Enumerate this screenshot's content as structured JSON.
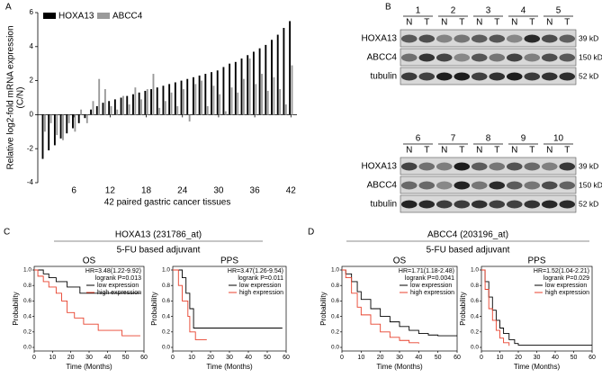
{
  "panel_labels": [
    "A",
    "B",
    "C",
    "D"
  ],
  "chart_data": [
    {
      "type": "bar",
      "legend": "upper left",
      "x_label": "42 paired gastric cancer tissues",
      "y_label": [
        "Relative log2-fold mRNA expression",
        "(C/N)"
      ],
      "x": [
        1,
        2,
        3,
        4,
        5,
        6,
        7,
        8,
        9,
        10,
        11,
        12,
        13,
        14,
        15,
        16,
        17,
        18,
        19,
        20,
        21,
        22,
        23,
        24,
        25,
        26,
        27,
        28,
        29,
        30,
        31,
        32,
        33,
        34,
        35,
        36,
        37,
        38,
        39,
        40,
        41,
        42
      ],
      "xlim": [
        0,
        43
      ],
      "xticks": [
        6,
        12,
        18,
        24,
        30,
        36,
        42
      ],
      "ylim": [
        -4,
        6
      ],
      "yticks": [
        -4,
        -2,
        0,
        2,
        4,
        6
      ],
      "series": [
        {
          "name": "HOXA13",
          "color": "#000000",
          "values": [
            -2.6,
            -2.1,
            -1.8,
            -1.4,
            -1.1,
            -0.8,
            -0.5,
            -0.2,
            0.3,
            0.5,
            0.7,
            0.8,
            0.9,
            1.0,
            1.1,
            1.2,
            1.3,
            1.4,
            1.5,
            1.6,
            1.7,
            1.8,
            1.9,
            2.0,
            2.1,
            2.2,
            2.3,
            2.4,
            2.5,
            2.6,
            2.8,
            3.0,
            3.1,
            3.3,
            3.5,
            3.7,
            3.9,
            4.1,
            4.4,
            4.7,
            5.1,
            5.5
          ]
        },
        {
          "name": "ABCC4",
          "color": "#9a9a9a",
          "values": [
            -1.0,
            -0.5,
            -1.2,
            -1.5,
            -0.5,
            -1.0,
            0.3,
            -0.5,
            0.8,
            2.1,
            1.5,
            0.5,
            0.3,
            1.1,
            0.6,
            1.6,
            0.9,
            1.5,
            2.4,
            0.4,
            0.8,
            1.3,
            0.5,
            1.5,
            -0.4,
            1.8,
            2.0,
            0.5,
            1.7,
            1.2,
            0.2,
            1.6,
            1.3,
            2.1,
            3.3,
            1.8,
            2.4,
            1.4,
            2.2,
            1.5,
            0.6,
            2.9
          ]
        }
      ]
    },
    {
      "type": "step",
      "title": "OS",
      "annotations": [
        "HR=3.48(1.22-9.92)",
        "logrank P=0.013"
      ],
      "x_label": "Time (Months)",
      "y_label": "Probability",
      "xlim": [
        0,
        60
      ],
      "xticks": [
        0,
        10,
        20,
        30,
        40,
        50,
        60
      ],
      "ylim": [
        0,
        1
      ],
      "yticks": [
        {
          "value": 0,
          "label": "0.0"
        },
        {
          "value": 0.2,
          "label": "0.2"
        },
        {
          "value": 0.4,
          "label": "0.4"
        },
        {
          "value": 0.6,
          "label": "0.6"
        },
        {
          "value": 0.8,
          "label": "0.8"
        },
        {
          "value": 1,
          "label": "1.0"
        }
      ],
      "series": [
        {
          "name": "low expression",
          "color": "#000000",
          "x": [
            0,
            5,
            8,
            12,
            18,
            25,
            58
          ],
          "values": [
            1,
            0.95,
            0.9,
            0.85,
            0.78,
            0.7,
            0.7
          ]
        },
        {
          "name": "high expression",
          "color": "#e8412c",
          "x": [
            0,
            2,
            5,
            8,
            12,
            15,
            18,
            22,
            27,
            35,
            48,
            58
          ],
          "values": [
            1,
            0.92,
            0.85,
            0.78,
            0.7,
            0.6,
            0.45,
            0.38,
            0.3,
            0.22,
            0.15,
            0.15
          ]
        }
      ]
    },
    {
      "type": "step",
      "title": "PPS",
      "annotations": [
        "HR=3.47(1.26-9.54)",
        "logrank P=0.011"
      ],
      "x_label": "Time (Months)",
      "y_label": "Probability",
      "xlim": [
        0,
        60
      ],
      "xticks": [
        0,
        10,
        20,
        30,
        40,
        50,
        60
      ],
      "ylim": [
        0,
        1
      ],
      "yticks": [
        {
          "value": 0,
          "label": "0.0"
        },
        {
          "value": 0.2,
          "label": "0.2"
        },
        {
          "value": 0.4,
          "label": "0.4"
        },
        {
          "value": 0.6,
          "label": "0.6"
        },
        {
          "value": 0.8,
          "label": "0.8"
        },
        {
          "value": 1,
          "label": "1.0"
        }
      ],
      "series": [
        {
          "name": "low expression",
          "color": "#000000",
          "x": [
            0,
            5,
            7,
            9,
            11,
            58
          ],
          "values": [
            1,
            0.9,
            0.7,
            0.5,
            0.25,
            0.25
          ]
        },
        {
          "name": "high expression",
          "color": "#e8412c",
          "x": [
            0,
            3,
            5,
            8,
            9,
            12,
            18
          ],
          "values": [
            1,
            0.8,
            0.6,
            0.4,
            0.2,
            0.1,
            0.1
          ]
        }
      ]
    },
    {
      "type": "step",
      "title": "OS",
      "annotations": [
        "HR=1.71(1.18-2.48)",
        "logrank P=0.0041"
      ],
      "x_label": "Time (Months)",
      "y_label": "Probability",
      "xlim": [
        0,
        60
      ],
      "xticks": [
        0,
        10,
        20,
        30,
        40,
        50,
        60
      ],
      "ylim": [
        0,
        1
      ],
      "yticks": [
        {
          "value": 0,
          "label": "0.0"
        },
        {
          "value": 0.2,
          "label": "0.2"
        },
        {
          "value": 0.4,
          "label": "0.4"
        },
        {
          "value": 0.6,
          "label": "0.6"
        },
        {
          "value": 0.8,
          "label": "0.8"
        },
        {
          "value": 1,
          "label": "1.0"
        }
      ],
      "series": [
        {
          "name": "low expression",
          "color": "#000000",
          "x": [
            0,
            2,
            5,
            8,
            10,
            15,
            20,
            25,
            30,
            35,
            40,
            45,
            50,
            60
          ],
          "values": [
            1,
            0.95,
            0.85,
            0.72,
            0.62,
            0.5,
            0.4,
            0.33,
            0.27,
            0.22,
            0.18,
            0.16,
            0.15,
            0.15
          ]
        },
        {
          "name": "high expression",
          "color": "#e8412c",
          "x": [
            0,
            2,
            5,
            8,
            10,
            15,
            20,
            25,
            30,
            35,
            40
          ],
          "values": [
            1,
            0.9,
            0.7,
            0.52,
            0.42,
            0.3,
            0.2,
            0.13,
            0.09,
            0.06,
            0.05
          ]
        }
      ]
    },
    {
      "type": "step",
      "title": "PPS",
      "annotations": [
        "HR=1.52(1.04-2.21)",
        "logrank P=0.029"
      ],
      "x_label": "Time (Months)",
      "y_label": "Probability",
      "xlim": [
        0,
        60
      ],
      "xticks": [
        0,
        10,
        20,
        30,
        40,
        50,
        60
      ],
      "ylim": [
        0,
        1
      ],
      "yticks": [
        {
          "value": 0,
          "label": "0.0"
        },
        {
          "value": 0.2,
          "label": "0.2"
        },
        {
          "value": 0.4,
          "label": "0.4"
        },
        {
          "value": 0.6,
          "label": "0.6"
        },
        {
          "value": 0.8,
          "label": "0.8"
        },
        {
          "value": 1,
          "label": "1.0"
        }
      ],
      "series": [
        {
          "name": "low expression",
          "color": "#000000",
          "x": [
            0,
            2,
            4,
            6,
            8,
            10,
            12,
            15,
            18,
            20,
            60
          ],
          "values": [
            1,
            0.85,
            0.65,
            0.48,
            0.35,
            0.25,
            0.18,
            0.1,
            0.05,
            0.03,
            0.03
          ]
        },
        {
          "name": "high expression",
          "color": "#e8412c",
          "x": [
            0,
            2,
            4,
            6,
            8,
            10,
            12,
            15
          ],
          "values": [
            1,
            0.75,
            0.5,
            0.35,
            0.22,
            0.12,
            0.06,
            0.02
          ]
        }
      ]
    }
  ],
  "km_headers": [
    {
      "title": "HOXA13 (231786_at)",
      "subtitle": "5-FU based adjuvant"
    },
    {
      "title": "ABCC4 (203196_at)",
      "subtitle": "5-FU based adjuvant"
    }
  ],
  "blot": {
    "groups": [
      [
        "1",
        "2",
        "3",
        "4",
        "5"
      ],
      [
        "6",
        "7",
        "8",
        "9",
        "10"
      ]
    ],
    "lanes": [
      "N",
      "T"
    ],
    "rows": [
      "HOXA13",
      "ABCC4",
      "tubulin"
    ],
    "sizes": [
      "39 kD",
      "150 kD",
      "52 kD"
    ]
  }
}
